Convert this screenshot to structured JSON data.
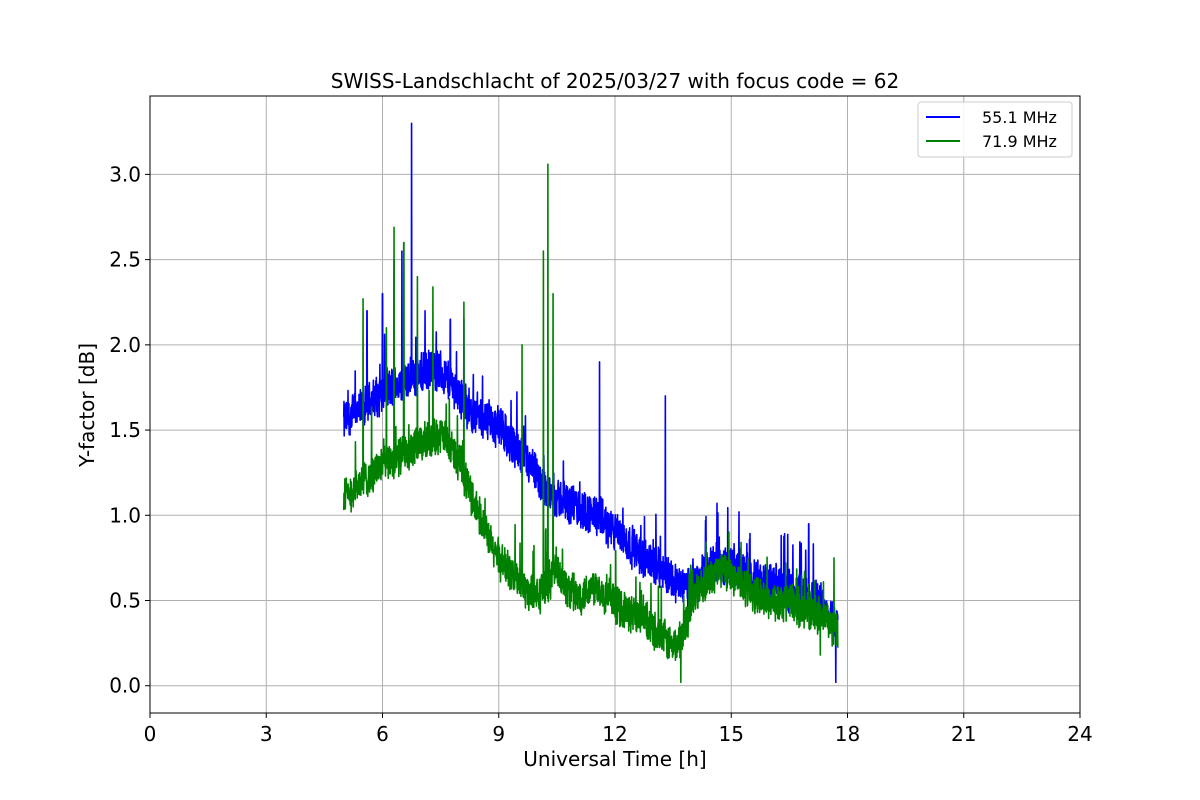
{
  "chart_data": {
    "type": "line",
    "title": "SWISS-Landschlacht of 2025/03/27 with focus code = 62",
    "xlabel": "Universal Time [h]",
    "ylabel": "Y-factor [dB]",
    "xlim": [
      0,
      24
    ],
    "ylim": [
      -0.16,
      3.46
    ],
    "xticks": [
      0,
      3,
      6,
      9,
      12,
      15,
      18,
      21,
      24
    ],
    "xtick_labels": [
      "0",
      "3",
      "6",
      "9",
      "12",
      "15",
      "18",
      "21",
      "24"
    ],
    "yticks": [
      0.0,
      0.5,
      1.0,
      1.5,
      2.0,
      2.5,
      3.0
    ],
    "ytick_labels": [
      "0.0",
      "0.5",
      "1.0",
      "1.5",
      "2.0",
      "2.5",
      "3.0"
    ],
    "grid": true,
    "legend_position": "top-right",
    "series": [
      {
        "name": "55.1 MHz",
        "color": "#0000ff",
        "x": [
          5.0,
          5.25,
          5.5,
          5.75,
          6.0,
          6.25,
          6.5,
          6.75,
          7.0,
          7.25,
          7.5,
          7.75,
          8.0,
          8.25,
          8.5,
          8.75,
          9.0,
          9.25,
          9.5,
          9.75,
          10.0,
          10.25,
          10.5,
          10.75,
          11.0,
          11.25,
          11.5,
          11.75,
          12.0,
          12.25,
          12.5,
          12.75,
          13.0,
          13.25,
          13.5,
          13.75,
          14.0,
          14.25,
          14.5,
          14.75,
          15.0,
          15.25,
          15.5,
          15.75,
          16.0,
          16.25,
          16.5,
          16.75,
          17.0,
          17.25,
          17.5,
          17.75
        ],
        "y": [
          1.55,
          1.6,
          1.62,
          1.68,
          1.72,
          1.75,
          1.78,
          1.8,
          1.82,
          1.85,
          1.85,
          1.78,
          1.7,
          1.62,
          1.58,
          1.55,
          1.52,
          1.45,
          1.38,
          1.3,
          1.22,
          1.15,
          1.1,
          1.08,
          1.05,
          1.02,
          1.0,
          0.95,
          0.9,
          0.85,
          0.8,
          0.75,
          0.72,
          0.68,
          0.62,
          0.58,
          0.6,
          0.65,
          0.7,
          0.72,
          0.7,
          0.68,
          0.65,
          0.62,
          0.6,
          0.58,
          0.56,
          0.55,
          0.52,
          0.5,
          0.45,
          0.35
        ],
        "peaks": [
          [
            5.6,
            2.2
          ],
          [
            6.0,
            2.3
          ],
          [
            6.3,
            2.5
          ],
          [
            6.5,
            2.55
          ],
          [
            6.75,
            3.3
          ],
          [
            7.1,
            2.2
          ],
          [
            7.75,
            2.15
          ],
          [
            8.1,
            2.15
          ],
          [
            11.6,
            1.9
          ],
          [
            13.3,
            1.7
          ],
          [
            15.2,
            1.02
          ],
          [
            17.0,
            0.95
          ],
          [
            17.7,
            0.02
          ]
        ]
      },
      {
        "name": "71.9 MHz",
        "color": "#008000",
        "x": [
          5.0,
          5.25,
          5.5,
          5.75,
          6.0,
          6.25,
          6.5,
          6.75,
          7.0,
          7.25,
          7.5,
          7.75,
          8.0,
          8.25,
          8.5,
          8.75,
          9.0,
          9.25,
          9.5,
          9.75,
          10.0,
          10.25,
          10.5,
          10.75,
          11.0,
          11.25,
          11.5,
          11.75,
          12.0,
          12.25,
          12.5,
          12.75,
          13.0,
          13.25,
          13.5,
          13.75,
          14.0,
          14.25,
          14.5,
          14.75,
          15.0,
          15.25,
          15.5,
          15.75,
          16.0,
          16.25,
          16.5,
          16.75,
          17.0,
          17.25,
          17.5,
          17.75
        ],
        "y": [
          1.1,
          1.15,
          1.2,
          1.25,
          1.3,
          1.33,
          1.36,
          1.38,
          1.42,
          1.45,
          1.48,
          1.4,
          1.3,
          1.15,
          1.0,
          0.85,
          0.75,
          0.68,
          0.62,
          0.55,
          0.52,
          0.6,
          0.7,
          0.58,
          0.52,
          0.55,
          0.6,
          0.52,
          0.48,
          0.45,
          0.42,
          0.38,
          0.32,
          0.28,
          0.22,
          0.3,
          0.5,
          0.6,
          0.65,
          0.68,
          0.66,
          0.6,
          0.56,
          0.52,
          0.5,
          0.48,
          0.5,
          0.46,
          0.44,
          0.42,
          0.38,
          0.3
        ],
        "peaks": [
          [
            5.5,
            2.27
          ],
          [
            6.1,
            2.1
          ],
          [
            6.3,
            2.69
          ],
          [
            6.55,
            2.6
          ],
          [
            6.9,
            2.4
          ],
          [
            7.3,
            2.34
          ],
          [
            8.1,
            2.25
          ],
          [
            9.6,
            2.0
          ],
          [
            10.15,
            2.55
          ],
          [
            10.27,
            3.06
          ],
          [
            10.4,
            2.3
          ],
          [
            13.7,
            0.02
          ],
          [
            17.3,
            0.18
          ],
          [
            17.65,
            0.75
          ]
        ]
      }
    ]
  }
}
